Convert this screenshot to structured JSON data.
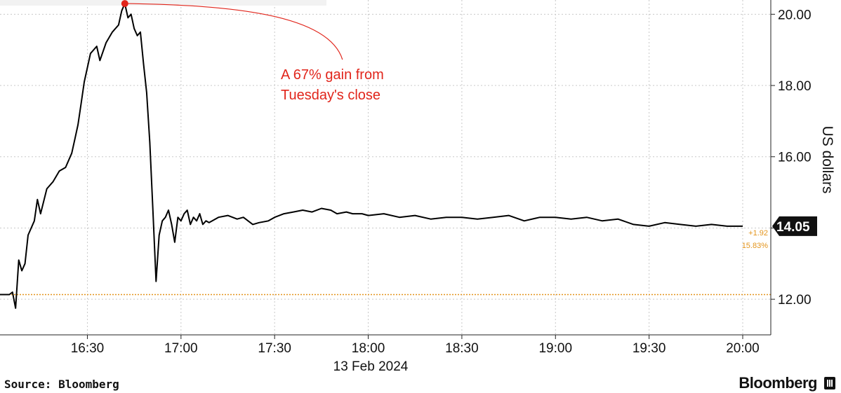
{
  "chart_data": {
    "type": "line",
    "xlabel": "13 Feb 2024",
    "ylabel": "US dollars",
    "x_ticks": [
      "16:30",
      "17:00",
      "17:30",
      "18:00",
      "18:30",
      "19:00",
      "19:30",
      "20:00"
    ],
    "y_ticks": [
      "20.00",
      "18.00",
      "16.00",
      "14.00",
      "12.00"
    ],
    "xlim": [
      "16:02",
      "20:09"
    ],
    "ylim": [
      11.0,
      20.4
    ],
    "grid": true,
    "y_axis_position": "right",
    "series": [
      {
        "x": [
          "16:02",
          "16:05",
          "16:06",
          "16:07",
          "16:08",
          "16:09",
          "16:10",
          "16:11",
          "16:13",
          "16:14",
          "16:15",
          "16:17",
          "16:19",
          "16:21",
          "16:23",
          "16:25",
          "16:26",
          "16:27",
          "16:28",
          "16:29",
          "16:31",
          "16:33",
          "16:34",
          "16:36",
          "16:38",
          "16:40",
          "16:41",
          "16:42",
          "16:43",
          "16:44",
          "16:45",
          "16:46",
          "16:47",
          "16:48",
          "16:49",
          "16:50",
          "16:51",
          "16:52",
          "16:53",
          "16:54",
          "16:55",
          "16:56",
          "16:57",
          "16:58",
          "16:59",
          "17:00",
          "17:01",
          "17:02",
          "17:03",
          "17:04",
          "17:05",
          "17:06",
          "17:07",
          "17:08",
          "17:09",
          "17:10",
          "17:12",
          "17:15",
          "17:18",
          "17:20",
          "17:23",
          "17:25",
          "17:28",
          "17:30",
          "17:33",
          "17:36",
          "17:39",
          "17:42",
          "17:45",
          "17:48",
          "17:50",
          "17:53",
          "17:55",
          "17:58",
          "18:00",
          "18:05",
          "18:10",
          "18:15",
          "18:20",
          "18:25",
          "18:30",
          "18:35",
          "18:40",
          "18:45",
          "18:50",
          "18:55",
          "19:00",
          "19:05",
          "19:10",
          "19:15",
          "19:20",
          "19:25",
          "19:30",
          "19:35",
          "19:40",
          "19:45",
          "19:50",
          "19:55",
          "20:00"
        ],
        "values": [
          12.13,
          12.13,
          12.2,
          11.75,
          13.1,
          12.8,
          13.0,
          13.8,
          14.2,
          14.8,
          14.4,
          15.1,
          15.3,
          15.6,
          15.7,
          16.1,
          16.5,
          16.9,
          17.5,
          18.1,
          18.9,
          19.1,
          18.7,
          19.2,
          19.5,
          19.7,
          20.1,
          20.3,
          19.9,
          20.0,
          19.6,
          19.4,
          19.5,
          18.6,
          17.8,
          16.4,
          14.5,
          12.5,
          13.8,
          14.2,
          14.3,
          14.5,
          14.1,
          13.6,
          14.3,
          14.2,
          14.4,
          14.5,
          14.1,
          14.3,
          14.2,
          14.4,
          14.1,
          14.2,
          14.15,
          14.2,
          14.3,
          14.35,
          14.25,
          14.3,
          14.1,
          14.15,
          14.2,
          14.3,
          14.4,
          14.45,
          14.5,
          14.45,
          14.55,
          14.5,
          14.4,
          14.45,
          14.4,
          14.4,
          14.35,
          14.4,
          14.3,
          14.35,
          14.25,
          14.3,
          14.3,
          14.25,
          14.3,
          14.35,
          14.2,
          14.3,
          14.3,
          14.25,
          14.3,
          14.2,
          14.25,
          14.1,
          14.05,
          14.15,
          14.1,
          14.05,
          14.1,
          14.05,
          14.05
        ]
      }
    ],
    "reference_line": {
      "value": 12.13,
      "color": "#e3941b"
    },
    "annotation": {
      "lines": [
        "A 67% gain from",
        "Tuesday's close"
      ],
      "point_x": "16:42",
      "point_y": 20.3,
      "color": "#e1251b"
    },
    "last_value": {
      "label": "14.05",
      "value": 14.05,
      "change": "+1.92",
      "change_pct": "15.83%",
      "change_color": "#e3941b"
    }
  },
  "footer": {
    "source": "Source: Bloomberg",
    "brand": "Bloomberg"
  }
}
